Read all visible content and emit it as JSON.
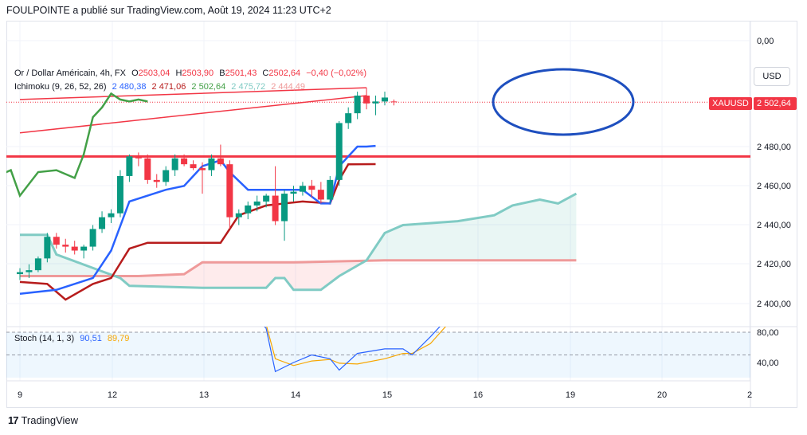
{
  "header": {
    "text": "FOULPOINTE a publié sur TradingView.com, Août 19, 2024 11:23 UTC+2"
  },
  "legend": {
    "symbol": "Or / Dollar Américain, 4h, FX",
    "o_label": "O",
    "o_value": "2503,04",
    "h_label": "H",
    "h_value": "2503,90",
    "b_label": "B",
    "b_value": "2501,43",
    "c_label": "C",
    "c_value": "2502,64",
    "change": "−0,40 (−0,02%)",
    "ichimoku_label": "Ichimoku (9, 26, 52, 26)",
    "ichimoku_values": [
      "2 480,38",
      "2 471,06",
      "2 502,64",
      "2 475,72",
      "2 444,49"
    ],
    "stoch_label": "Stoch (14, 1, 3)",
    "stoch_values": [
      "90,51",
      "89,79"
    ]
  },
  "currency_button": "USD",
  "price_tag": {
    "symbol": "XAUUSD",
    "value": "2 502,64"
  },
  "y_axis_labels": [
    "0,00",
    "2 480,00",
    "2 460,00",
    "2 440,00",
    "2 420,00",
    "2 400,00"
  ],
  "stoch_axis_labels": [
    "80,00",
    "40,00"
  ],
  "x_axis_labels": [
    "9",
    "12",
    "13",
    "14",
    "15",
    "16",
    "19",
    "20",
    "2"
  ],
  "footer": {
    "brand": "TradingView"
  },
  "colors": {
    "up": "#089981",
    "down": "#f23645",
    "tenkan": "#2962ff",
    "kijun": "#b71c1c",
    "chikou": "#43a047",
    "span_a": "#80cbc4",
    "span_b": "#ef9a9a",
    "stoch_k": "#2962ff",
    "stoch_d": "#f7a600",
    "trendline": "#f23645",
    "ellipse": "#1e4fbf"
  },
  "chart_data": {
    "type": "candlestick",
    "symbol": "XAUUSD",
    "timeframe": "4h",
    "ylim": [
      2395,
      2510
    ],
    "candles": [
      [
        2415,
        2418,
        2412,
        2416
      ],
      [
        2416,
        2420,
        2413,
        2417
      ],
      [
        2417,
        2424,
        2416,
        2423
      ],
      [
        2423,
        2436,
        2421,
        2434
      ],
      [
        2434,
        2436,
        2428,
        2430
      ],
      [
        2430,
        2433,
        2426,
        2429
      ],
      [
        2429,
        2432,
        2425,
        2427
      ],
      [
        2427,
        2430,
        2423,
        2429
      ],
      [
        2429,
        2440,
        2427,
        2438
      ],
      [
        2438,
        2447,
        2436,
        2444
      ],
      [
        2444,
        2448,
        2441,
        2446
      ],
      [
        2446,
        2468,
        2444,
        2465
      ],
      [
        2465,
        2476,
        2462,
        2475
      ],
      [
        2475,
        2477,
        2470,
        2474
      ],
      [
        2474,
        2476,
        2461,
        2463
      ],
      [
        2463,
        2466,
        2459,
        2462
      ],
      [
        2462,
        2470,
        2460,
        2468
      ],
      [
        2468,
        2476,
        2465,
        2474
      ],
      [
        2474,
        2476,
        2470,
        2471
      ],
      [
        2471,
        2473,
        2468,
        2469
      ],
      [
        2469,
        2472,
        2456,
        2468
      ],
      [
        2468,
        2476,
        2465,
        2474
      ],
      [
        2474,
        2481,
        2470,
        2471
      ],
      [
        2471,
        2473,
        2438,
        2444
      ],
      [
        2444,
        2448,
        2440,
        2446
      ],
      [
        2446,
        2452,
        2443,
        2450
      ],
      [
        2450,
        2455,
        2447,
        2452
      ],
      [
        2452,
        2456,
        2449,
        2455
      ],
      [
        2455,
        2470,
        2440,
        2442
      ],
      [
        2442,
        2458,
        2432,
        2456
      ],
      [
        2456,
        2460,
        2452,
        2457
      ],
      [
        2457,
        2462,
        2455,
        2460
      ],
      [
        2460,
        2463,
        2454,
        2458
      ],
      [
        2458,
        2462,
        2451,
        2453
      ],
      [
        2453,
        2465,
        2451,
        2463
      ],
      [
        2463,
        2493,
        2460,
        2492
      ],
      [
        2492,
        2500,
        2489,
        2497
      ],
      [
        2497,
        2508,
        2494,
        2506
      ],
      [
        2506,
        2510,
        2499,
        2502
      ],
      [
        2502,
        2506,
        2496,
        2503
      ],
      [
        2503,
        2508,
        2501,
        2505
      ],
      [
        2503,
        2504,
        2501,
        2502.64
      ]
    ],
    "tenkan": [
      [
        0,
        2405
      ],
      [
        4,
        2407
      ],
      [
        8,
        2413
      ],
      [
        10,
        2427
      ],
      [
        12,
        2452
      ],
      [
        16,
        2458
      ],
      [
        18,
        2460
      ],
      [
        20,
        2470
      ],
      [
        22,
        2473
      ],
      [
        23,
        2467
      ],
      [
        25,
        2458
      ],
      [
        27,
        2458
      ],
      [
        31,
        2458
      ],
      [
        33,
        2451
      ],
      [
        34,
        2451
      ],
      [
        35,
        2470
      ],
      [
        37,
        2480
      ],
      [
        38,
        2480
      ],
      [
        39,
        2480.38
      ]
    ],
    "kijun": [
      [
        0,
        2411
      ],
      [
        3,
        2410
      ],
      [
        5,
        2402
      ],
      [
        8,
        2410
      ],
      [
        10,
        2413
      ],
      [
        12,
        2428
      ],
      [
        14,
        2431
      ],
      [
        22,
        2431
      ],
      [
        24,
        2445
      ],
      [
        27,
        2450
      ],
      [
        31,
        2452
      ],
      [
        34,
        2451
      ],
      [
        35,
        2463
      ],
      [
        36,
        2471
      ],
      [
        39,
        2471.06
      ]
    ],
    "chikou": [
      [
        -2,
        2466
      ],
      [
        -1,
        2468
      ],
      [
        0,
        2455
      ],
      [
        2,
        2467
      ],
      [
        4,
        2468
      ],
      [
        6,
        2464
      ],
      [
        7,
        2476
      ],
      [
        8,
        2495
      ],
      [
        9,
        2500
      ],
      [
        10,
        2507
      ],
      [
        11,
        2504
      ],
      [
        12,
        2503
      ],
      [
        13,
        2504
      ],
      [
        14,
        2503
      ]
    ],
    "senkou_a": [
      [
        0,
        2435
      ],
      [
        3,
        2435
      ],
      [
        4,
        2425
      ],
      [
        11,
        2413
      ],
      [
        12,
        2409
      ],
      [
        20,
        2408
      ],
      [
        27,
        2408
      ],
      [
        28,
        2413
      ],
      [
        29,
        2413
      ],
      [
        30,
        2407
      ],
      [
        33,
        2407
      ],
      [
        35,
        2414
      ],
      [
        38,
        2422
      ],
      [
        40,
        2436
      ],
      [
        42,
        2440
      ],
      [
        48,
        2442
      ],
      [
        52,
        2445
      ],
      [
        54,
        2450
      ],
      [
        57,
        2453
      ],
      [
        59,
        2451
      ],
      [
        61,
        2456
      ]
    ],
    "senkou_b": [
      [
        0,
        2414
      ],
      [
        13,
        2414
      ],
      [
        18,
        2415
      ],
      [
        20,
        2421
      ],
      [
        30,
        2421
      ],
      [
        40,
        2422
      ],
      [
        61,
        2422
      ]
    ],
    "trendlines": [
      [
        [
          0,
          2487
        ],
        [
          38,
          2506
        ]
      ],
      [
        [
          0,
          2504
        ],
        [
          38,
          2510
        ]
      ]
    ],
    "horizontal_level": 2475,
    "stoch": {
      "ylim": [
        10,
        100
      ],
      "k": [
        [
          8,
          100
        ],
        [
          10,
          100
        ],
        [
          12,
          100
        ],
        [
          14,
          95
        ],
        [
          16,
          94
        ],
        [
          18,
          100
        ],
        [
          20,
          92
        ],
        [
          22,
          94
        ],
        [
          24,
          100
        ],
        [
          26,
          100
        ],
        [
          27,
          85
        ],
        [
          28,
          28
        ],
        [
          30,
          40
        ],
        [
          32,
          50
        ],
        [
          34,
          45
        ],
        [
          35,
          30
        ],
        [
          37,
          52
        ],
        [
          40,
          58
        ],
        [
          42,
          58
        ],
        [
          43,
          50
        ],
        [
          45,
          74
        ],
        [
          47,
          100
        ]
      ],
      "d": [
        [
          18,
          100
        ],
        [
          22,
          98
        ],
        [
          26,
          97
        ],
        [
          27,
          90
        ],
        [
          28,
          45
        ],
        [
          30,
          36
        ],
        [
          32,
          42
        ],
        [
          34,
          44
        ],
        [
          35,
          39
        ],
        [
          37,
          38
        ],
        [
          40,
          45
        ],
        [
          42,
          52
        ],
        [
          43,
          52
        ],
        [
          45,
          65
        ],
        [
          47,
          92
        ]
      ]
    }
  }
}
